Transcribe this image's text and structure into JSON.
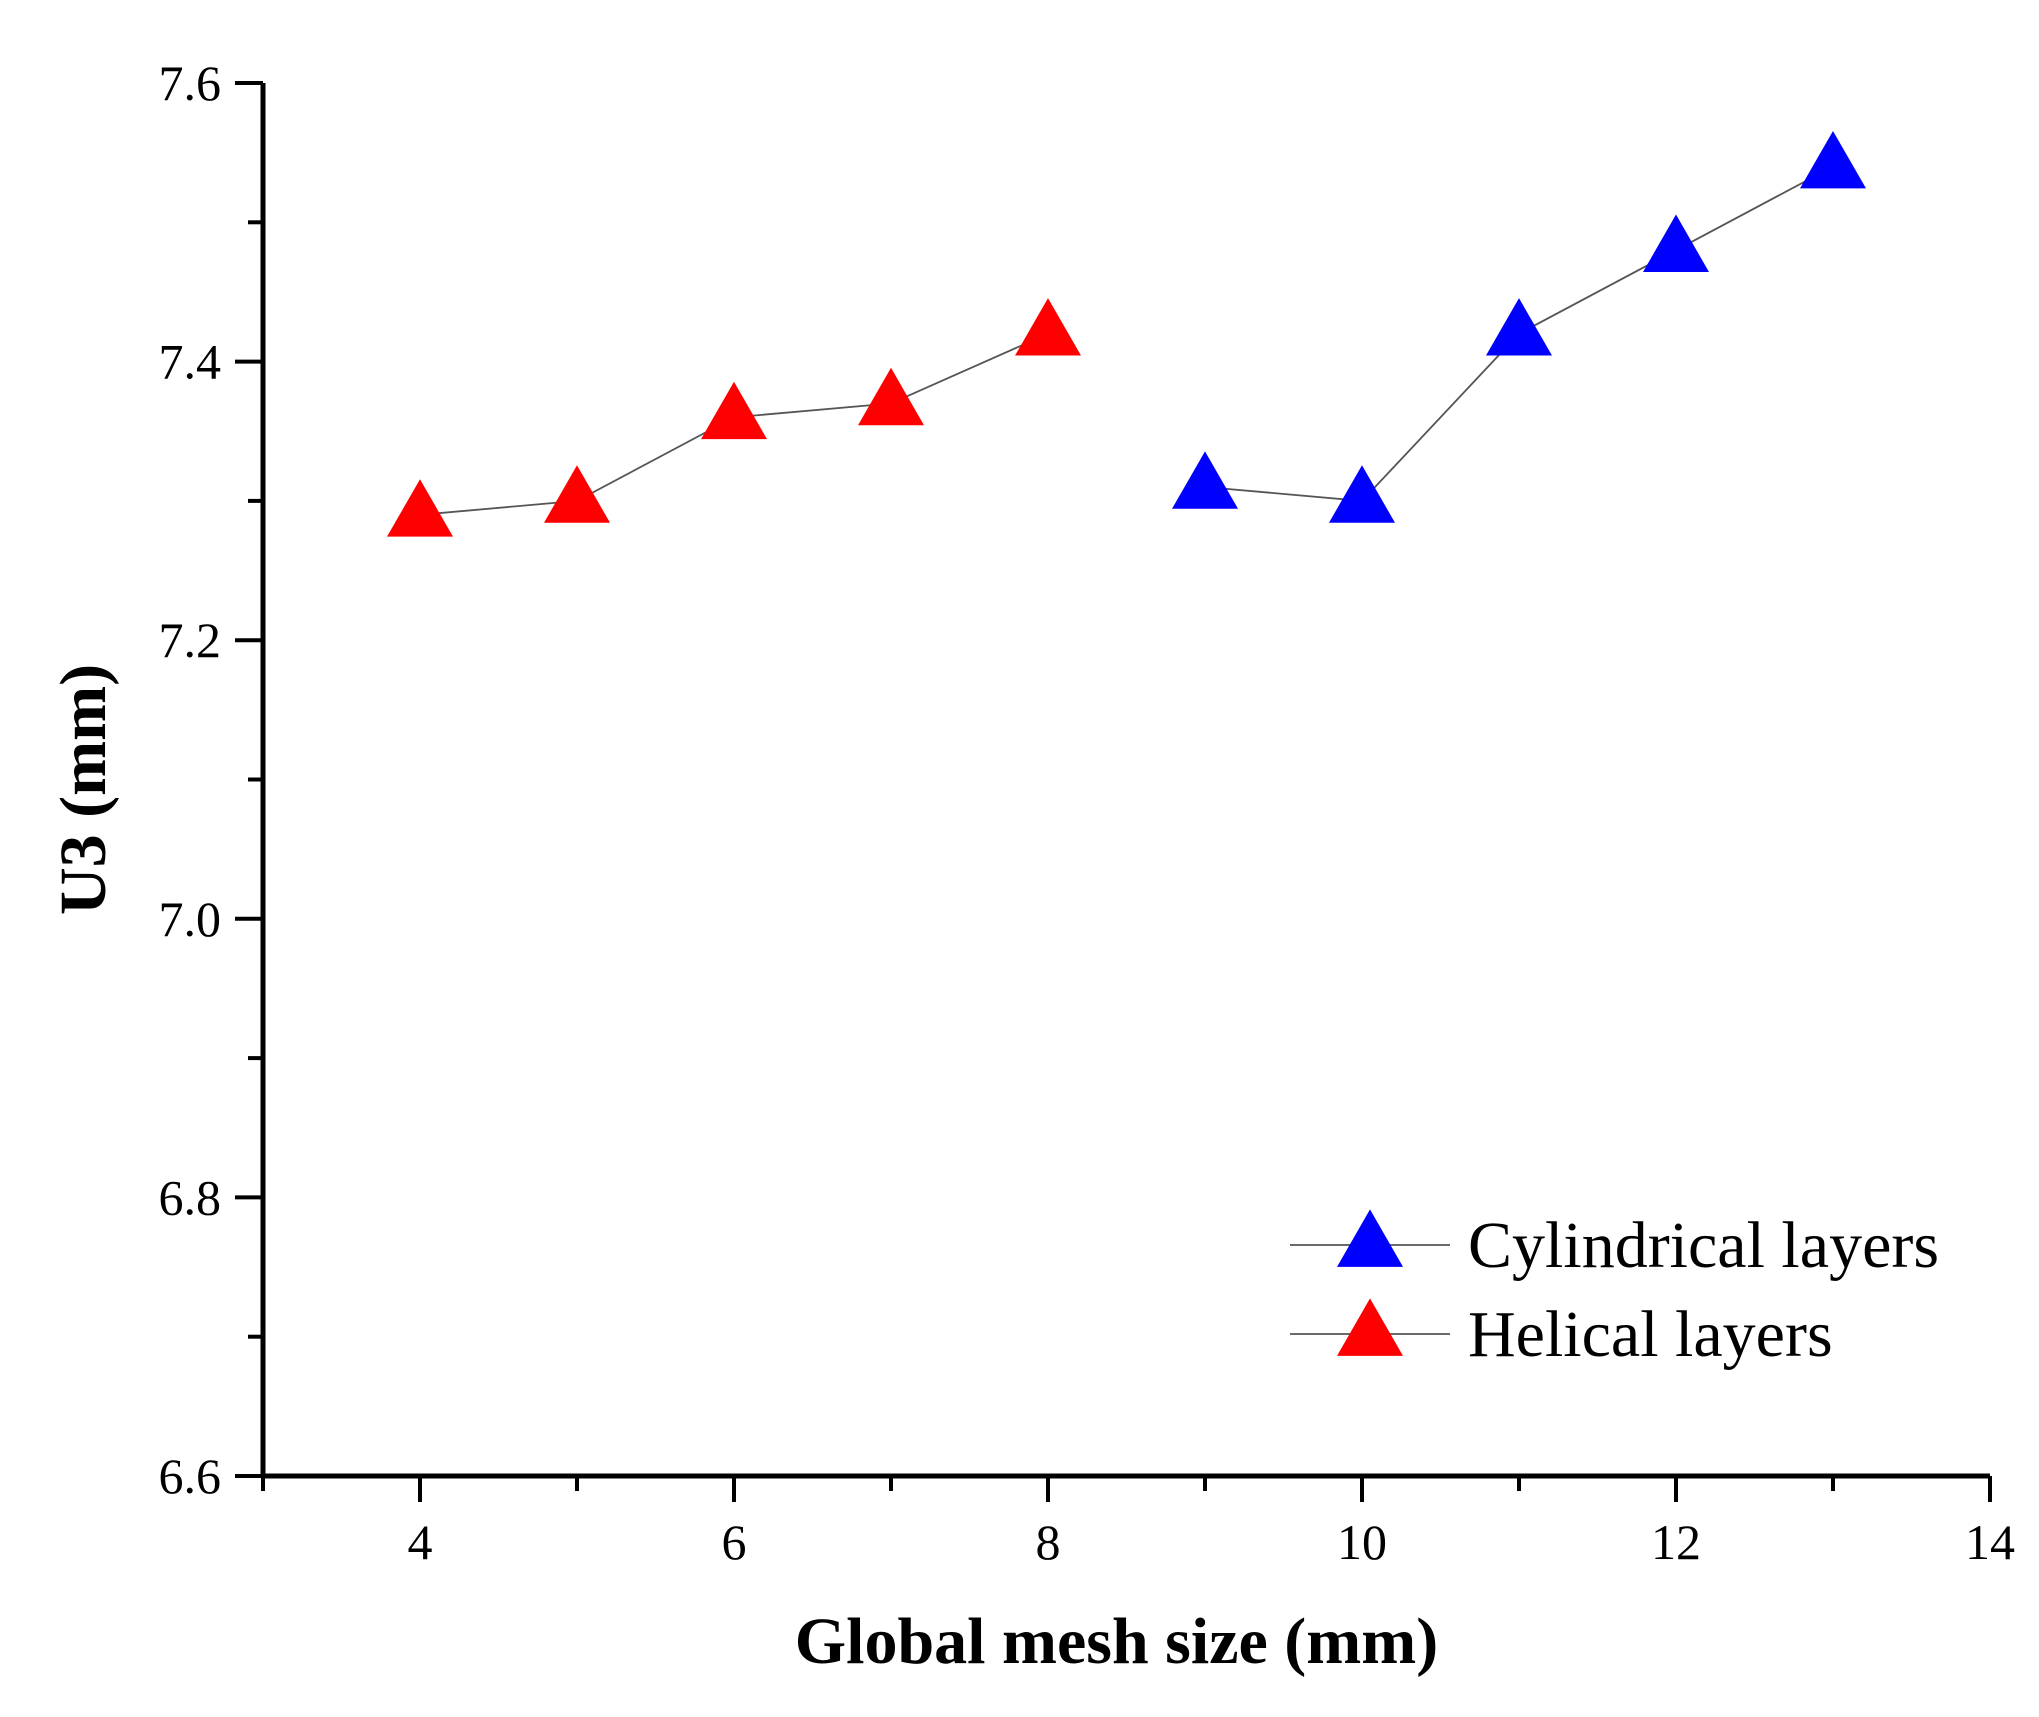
{
  "chart_data": {
    "type": "line",
    "title": "",
    "xlabel": "Global mesh size (mm)",
    "ylabel": "U3 (mm)",
    "xlim": [
      3,
      14
    ],
    "ylim": [
      6.6,
      7.6
    ],
    "x_ticks": [
      4,
      6,
      8,
      10,
      12,
      14
    ],
    "x_tick_labels": [
      "4",
      "6",
      "8",
      "10",
      "12",
      "14"
    ],
    "y_ticks": [
      6.6,
      6.8,
      7.0,
      7.2,
      7.4,
      7.6
    ],
    "y_tick_labels": [
      "6.6",
      "6.8",
      "7.0",
      "7.2",
      "7.4",
      "7.6"
    ],
    "grid": false,
    "legend_position": "bottom-right",
    "series": [
      {
        "name": "Cylindrical layers",
        "color": "#0000ff",
        "marker": "triangle",
        "x": [
          9,
          10,
          11,
          12,
          13
        ],
        "values": [
          7.31,
          7.3,
          7.42,
          7.48,
          7.54
        ]
      },
      {
        "name": "Helical layers",
        "color": "#ff0000",
        "marker": "triangle",
        "x": [
          4,
          5,
          6,
          7,
          8
        ],
        "values": [
          7.29,
          7.3,
          7.36,
          7.37,
          7.42
        ]
      }
    ]
  }
}
